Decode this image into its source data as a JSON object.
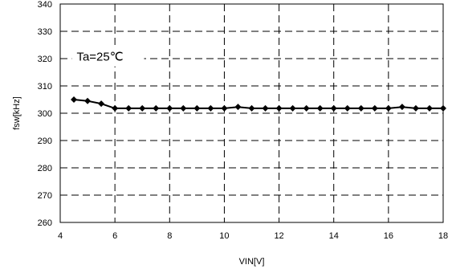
{
  "chart_data": {
    "type": "line",
    "xlabel": "VIN[V]",
    "ylabel": "fsw[kHz]",
    "xlim": [
      4,
      18
    ],
    "ylim": [
      260,
      340
    ],
    "x_ticks": [
      4,
      6,
      8,
      10,
      12,
      14,
      16,
      18
    ],
    "y_ticks": [
      260,
      270,
      280,
      290,
      300,
      310,
      320,
      330,
      340
    ],
    "x_tick_labels": [
      "4",
      "6",
      "8",
      "10",
      "12",
      "14",
      "16",
      "18"
    ],
    "y_tick_labels": [
      "260",
      "270",
      "280",
      "290",
      "300",
      "310",
      "320",
      "330",
      "340"
    ],
    "grid": true,
    "annotation": "Ta=25℃",
    "series": [
      {
        "color": "#000000",
        "marker": "diamond",
        "x": [
          4.5,
          5,
          5.5,
          6,
          6.5,
          7,
          7.5,
          8,
          8.5,
          9,
          9.5,
          10,
          10.5,
          11,
          11.5,
          12,
          12.5,
          13,
          13.5,
          14,
          14.5,
          15,
          15.5,
          16,
          16.5,
          17,
          17.5,
          18
        ],
        "y": [
          305,
          304.5,
          303.5,
          301.8,
          301.8,
          301.8,
          301.8,
          301.8,
          301.8,
          301.8,
          301.8,
          301.8,
          302.3,
          301.8,
          301.8,
          301.8,
          301.8,
          301.8,
          301.8,
          301.8,
          301.8,
          301.8,
          301.8,
          301.8,
          302.3,
          301.8,
          301.8,
          301.8
        ]
      }
    ]
  }
}
